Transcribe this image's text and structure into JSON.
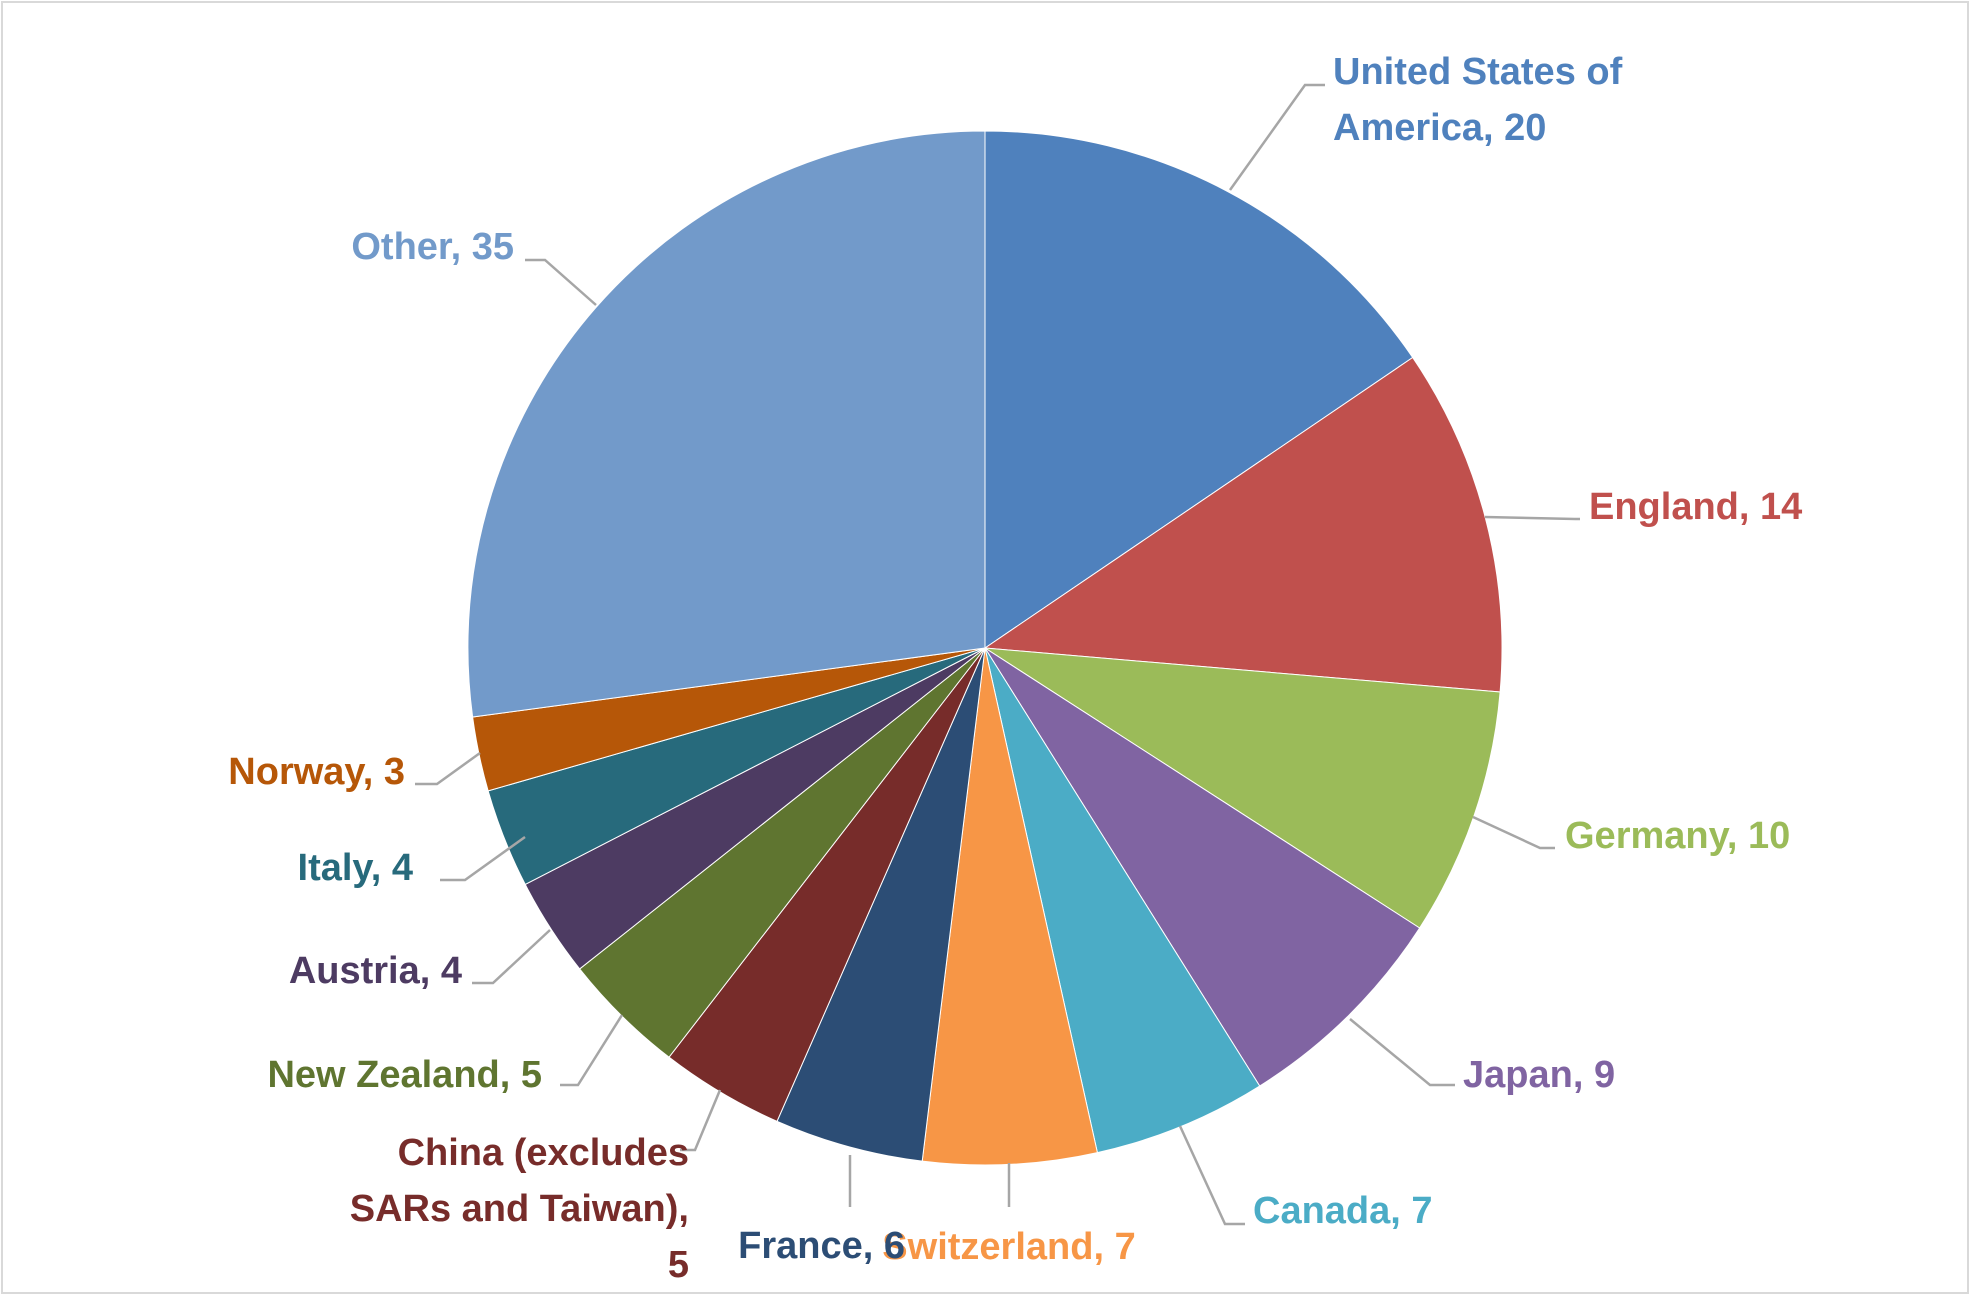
{
  "chart_data": {
    "type": "pie",
    "title": "",
    "start_angle_deg": 0,
    "direction": "clockwise",
    "legend": "none",
    "data_labels": "category-and-value",
    "slices": [
      {
        "label": "United States of America",
        "value": 20,
        "color": "#4F81BD"
      },
      {
        "label": "England",
        "value": 14,
        "color": "#C0504D"
      },
      {
        "label": "Germany",
        "value": 10,
        "color": "#9BBB59"
      },
      {
        "label": "Japan",
        "value": 9,
        "color": "#8064A2"
      },
      {
        "label": "Canada",
        "value": 7,
        "color": "#4BACC6"
      },
      {
        "label": "Switzerland",
        "value": 7,
        "color": "#F79646"
      },
      {
        "label": "France",
        "value": 6,
        "color": "#2C4D75"
      },
      {
        "label": "China (excludes SARs and Taiwan)",
        "value": 5,
        "color": "#772C2A"
      },
      {
        "label": "New Zealand",
        "value": 5,
        "color": "#5F7530"
      },
      {
        "label": "Austria",
        "value": 4,
        "color": "#4D3B62"
      },
      {
        "label": "Italy",
        "value": 4,
        "color": "#276A7C"
      },
      {
        "label": "Norway",
        "value": 3,
        "color": "#B65708"
      },
      {
        "label": "Other",
        "value": 35,
        "color": "#729ACA"
      }
    ],
    "label_text": [
      [
        "United States of",
        "America, 20"
      ],
      [
        "England, 14"
      ],
      [
        "Germany, 10"
      ],
      [
        "Japan, 9"
      ],
      [
        "Canada, 7"
      ],
      [
        "Switzerland, 7"
      ],
      [
        "France, 6"
      ],
      [
        "China (excludes",
        "SARs and Taiwan),",
        "5"
      ],
      [
        "New Zealand, 5"
      ],
      [
        "Austria, 4"
      ],
      [
        "Italy, 4"
      ],
      [
        "Norway, 3"
      ],
      [
        "Other, 35"
      ]
    ]
  }
}
